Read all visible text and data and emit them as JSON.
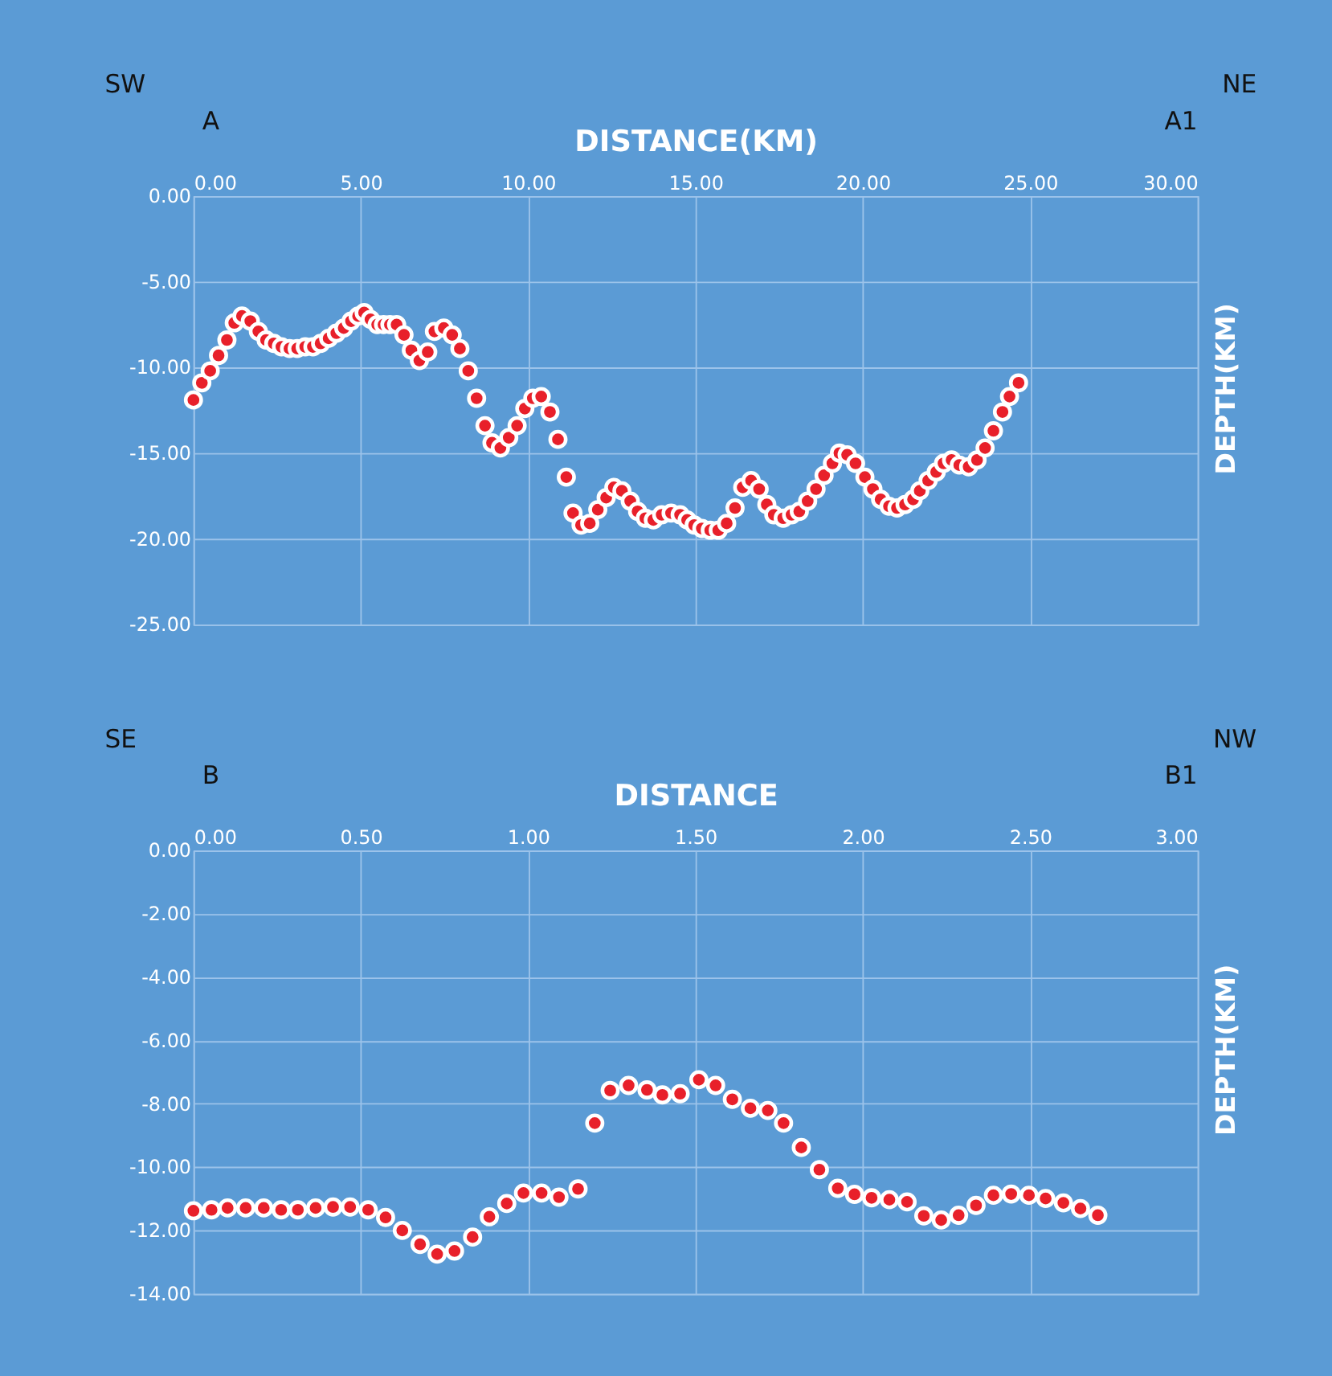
{
  "chart_data": [
    {
      "type": "scatter",
      "xlabel": "DISTANCE(KM)",
      "ylabel": "DEPTH(KM)",
      "annotations": [
        "SW",
        "NE",
        "A",
        "A1"
      ],
      "marker": "circle",
      "grid": true,
      "xlim": [
        0,
        30
      ],
      "xticks": [
        {
          "value": 0,
          "label": "0.00"
        },
        {
          "value": 5,
          "label": "5.00"
        },
        {
          "value": 10,
          "label": "10.00"
        },
        {
          "value": 15,
          "label": "15.00"
        },
        {
          "value": 20,
          "label": "20.00"
        },
        {
          "value": 25,
          "label": "25.00"
        },
        {
          "value": 30,
          "label": "30.00"
        }
      ],
      "ylim": [
        -25,
        0
      ],
      "yticks": [
        {
          "value": 0,
          "label": "0.00"
        },
        {
          "value": -5,
          "label": "-5.00"
        },
        {
          "value": -10,
          "label": "-10.00"
        },
        {
          "value": -15,
          "label": "-15.00"
        },
        {
          "value": -20,
          "label": "-20.00"
        },
        {
          "value": -25,
          "label": "-25.00"
        }
      ],
      "series": [
        {
          "color": "#e8202a",
          "x": [
            0.0,
            0.25,
            0.5,
            0.75,
            1.0,
            1.22,
            1.45,
            1.7,
            1.94,
            2.17,
            2.4,
            2.63,
            2.87,
            3.1,
            3.34,
            3.57,
            3.8,
            4.04,
            4.27,
            4.49,
            4.71,
            4.92,
            5.1,
            5.29,
            5.49,
            5.68,
            5.87,
            6.07,
            6.29,
            6.51,
            6.75,
            7.0,
            7.2,
            7.48,
            7.73,
            7.96,
            8.21,
            8.46,
            8.71,
            8.92,
            9.17,
            9.42,
            9.67,
            9.9,
            10.14,
            10.39,
            10.65,
            10.89,
            11.14,
            11.34,
            11.58,
            11.84,
            12.08,
            12.33,
            12.56,
            12.8,
            13.05,
            13.27,
            13.5,
            13.74,
            13.99,
            14.27,
            14.54,
            14.75,
            14.96,
            15.19,
            15.44,
            15.68,
            15.93,
            16.18,
            16.41,
            16.66,
            16.9,
            17.13,
            17.34,
            17.62,
            17.87,
            18.1,
            18.35,
            18.6,
            18.84,
            19.09,
            19.3,
            19.53,
            19.78,
            20.06,
            20.3,
            20.53,
            20.78,
            21.02,
            21.26,
            21.5,
            21.7,
            21.95,
            22.19,
            22.41,
            22.65,
            22.88,
            23.16,
            23.41,
            23.65,
            23.9,
            24.17,
            24.38,
            24.65
          ],
          "values": [
            -11.9,
            -10.9,
            -10.2,
            -9.3,
            -8.4,
            -7.4,
            -7.0,
            -7.3,
            -7.9,
            -8.4,
            -8.6,
            -8.8,
            -8.9,
            -8.9,
            -8.8,
            -8.8,
            -8.6,
            -8.3,
            -8.0,
            -7.7,
            -7.3,
            -7.0,
            -6.8,
            -7.2,
            -7.5,
            -7.5,
            -7.5,
            -7.5,
            -8.1,
            -9.0,
            -9.6,
            -9.1,
            -7.9,
            -7.7,
            -8.1,
            -8.9,
            -10.2,
            -11.8,
            -13.4,
            -14.4,
            -14.7,
            -14.1,
            -13.4,
            -12.4,
            -11.8,
            -11.7,
            -12.6,
            -14.2,
            -16.4,
            -18.5,
            -19.2,
            -19.1,
            -18.3,
            -17.6,
            -17.0,
            -17.2,
            -17.8,
            -18.4,
            -18.8,
            -18.9,
            -18.6,
            -18.5,
            -18.6,
            -18.9,
            -19.2,
            -19.4,
            -19.5,
            -19.5,
            -19.1,
            -18.2,
            -17.0,
            -16.6,
            -17.1,
            -18.0,
            -18.6,
            -18.8,
            -18.6,
            -18.4,
            -17.8,
            -17.1,
            -16.3,
            -15.6,
            -15.0,
            -15.1,
            -15.6,
            -16.4,
            -17.1,
            -17.7,
            -18.1,
            -18.2,
            -18.0,
            -17.7,
            -17.2,
            -16.6,
            -16.1,
            -15.6,
            -15.4,
            -15.7,
            -15.8,
            -15.4,
            -14.7,
            -13.7,
            -12.6,
            -11.7,
            -10.9
          ]
        }
      ]
    },
    {
      "type": "scatter",
      "xlabel": "DISTANCE",
      "ylabel": "DEPTH(KM)",
      "annotations": [
        "SE",
        "NW",
        "B",
        "B1"
      ],
      "marker": "circle",
      "grid": true,
      "xlim": [
        0,
        3
      ],
      "xticks": [
        {
          "value": 0,
          "label": "0.00"
        },
        {
          "value": 0.5,
          "label": "0.50"
        },
        {
          "value": 1,
          "label": "1.00"
        },
        {
          "value": 1.5,
          "label": "1.50"
        },
        {
          "value": 2,
          "label": "2.00"
        },
        {
          "value": 2.5,
          "label": "2.50"
        },
        {
          "value": 3,
          "label": "3.00"
        }
      ],
      "ylim": [
        -14,
        0
      ],
      "yticks": [
        {
          "value": 0,
          "label": "0.00"
        },
        {
          "value": -2,
          "label": "-2.00"
        },
        {
          "value": -4,
          "label": "-4.00"
        },
        {
          "value": -6,
          "label": "-6.00"
        },
        {
          "value": -8,
          "label": "-8.00"
        },
        {
          "value": -10,
          "label": "-10.00"
        },
        {
          "value": -12,
          "label": "-12.00"
        },
        {
          "value": -14,
          "label": "-14.00"
        }
      ],
      "series": [
        {
          "color": "#e8202a",
          "x": [
            0.0,
            0.054,
            0.102,
            0.156,
            0.21,
            0.262,
            0.312,
            0.365,
            0.417,
            0.468,
            0.522,
            0.574,
            0.624,
            0.677,
            0.728,
            0.78,
            0.834,
            0.884,
            0.936,
            0.986,
            1.04,
            1.092,
            1.149,
            1.199,
            1.245,
            1.3,
            1.355,
            1.401,
            1.454,
            1.51,
            1.56,
            1.61,
            1.664,
            1.716,
            1.763,
            1.816,
            1.87,
            1.925,
            1.975,
            2.026,
            2.079,
            2.132,
            2.182,
            2.234,
            2.286,
            2.338,
            2.39,
            2.443,
            2.496,
            2.546,
            2.599,
            2.65,
            2.702
          ],
          "values": [
            -11.38,
            -11.35,
            -11.29,
            -11.29,
            -11.29,
            -11.35,
            -11.35,
            -11.29,
            -11.26,
            -11.26,
            -11.35,
            -11.59,
            -12.0,
            -12.44,
            -12.75,
            -12.65,
            -12.21,
            -11.57,
            -11.15,
            -10.82,
            -10.82,
            -10.95,
            -10.69,
            -8.61,
            -7.58,
            -7.42,
            -7.56,
            -7.72,
            -7.68,
            -7.24,
            -7.42,
            -7.86,
            -8.14,
            -8.21,
            -8.61,
            -9.38,
            -10.08,
            -10.67,
            -10.86,
            -10.97,
            -11.03,
            -11.1,
            -11.54,
            -11.67,
            -11.52,
            -11.21,
            -10.89,
            -10.85,
            -10.89,
            -10.99,
            -11.13,
            -11.31,
            -11.52
          ]
        }
      ]
    }
  ]
}
